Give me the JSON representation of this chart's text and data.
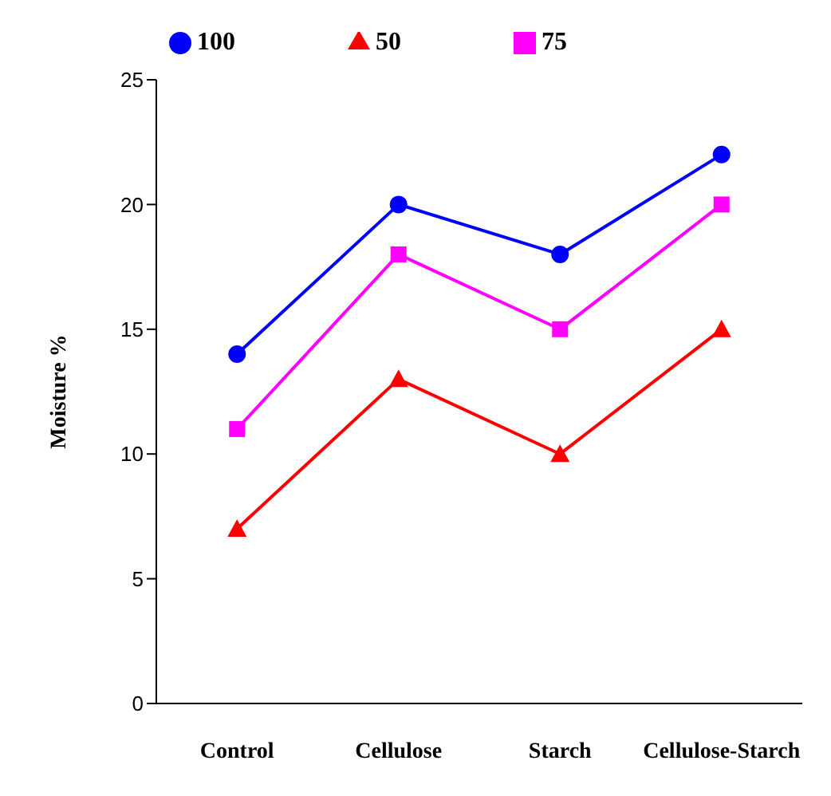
{
  "chart_data": {
    "type": "line",
    "ylabel": "Moisture %",
    "categories": [
      "Control",
      "Cellulose",
      "Starch",
      "Cellulose-Starch"
    ],
    "series": [
      {
        "name": "100",
        "color": "#0000ff",
        "marker": "circle",
        "values": [
          14,
          20,
          18,
          22
        ]
      },
      {
        "name": "75",
        "color": "#ff00ff",
        "marker": "square",
        "values": [
          11,
          18,
          15,
          20
        ]
      },
      {
        "name": "50",
        "color": "#ff0000",
        "marker": "triangle",
        "values": [
          7,
          13,
          10,
          15
        ]
      }
    ],
    "ylim": [
      0,
      25
    ],
    "yticks": [
      0,
      5,
      10,
      15,
      20,
      25
    ],
    "grid": false,
    "legend": "top"
  }
}
